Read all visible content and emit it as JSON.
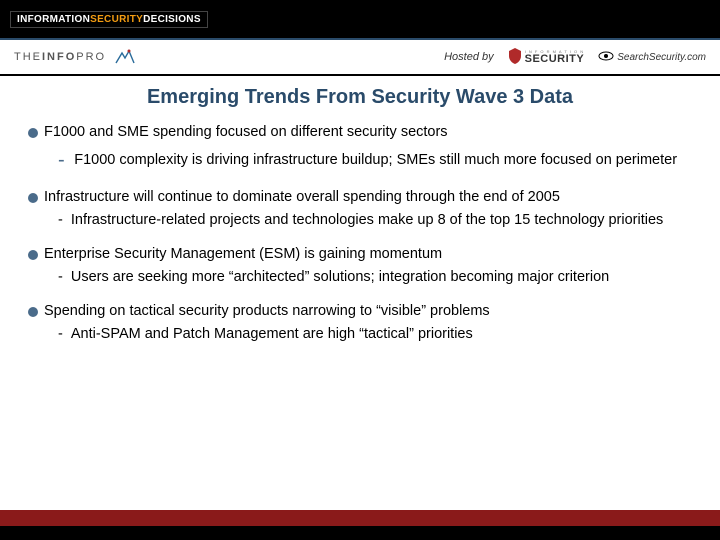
{
  "banner": {
    "brand_info": "INFORMATION ",
    "brand_sec": "SECURITY ",
    "brand_dec": "DECISIONS"
  },
  "sponsors": {
    "tip_the": "THE",
    "tip_info": "INFO",
    "tip_pro": "PRO",
    "hosted_by": "Hosted by",
    "security_small": "I N F O R M A T I O N",
    "security_big": "SECURITY",
    "searchsec": "SearchSecurity.com"
  },
  "title": "Emerging Trends From Security Wave 3 Data",
  "bullets": [
    {
      "main": "F1000 and SME spending focused on different security sectors",
      "sub": "F1000 complexity is driving infrastructure buildup;  SMEs still much more focused on perimeter",
      "sub_style": "big"
    },
    {
      "main": "Infrastructure will continue to dominate overall spending through the end of 2005",
      "sub": "Infrastructure-related projects and technologies make up 8 of the top 15 technology priorities",
      "sub_style": "small"
    },
    {
      "main": "Enterprise Security Management (ESM) is gaining momentum",
      "sub": "Users are seeking more “architected” solutions; integration becoming major criterion",
      "sub_style": "small"
    },
    {
      "main": "Spending on tactical security products narrowing to “visible” problems",
      "sub": "Anti-SPAM and Patch Management are high “tactical” priorities",
      "sub_style": "small"
    }
  ],
  "colors": {
    "title_color": "#2a4b6a",
    "bullet_color": "#4a6b8a",
    "footer_red": "#8a1a1a",
    "footer_black": "#000000"
  }
}
